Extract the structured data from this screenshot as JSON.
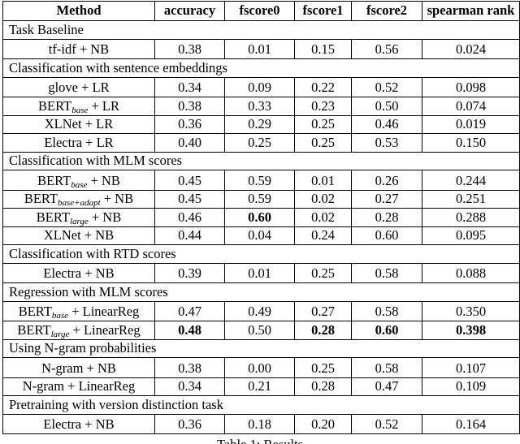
{
  "columns": [
    "Method",
    "accuracy",
    "fscore0",
    "fscore1",
    "fscore2",
    "spearman rank"
  ],
  "sections": [
    {
      "title": "Task Baseline",
      "rows": [
        {
          "method": "tf-idf + NB",
          "values": [
            "0.38",
            "0.01",
            "0.15",
            "0.56",
            "0.024"
          ]
        }
      ]
    },
    {
      "title": "Classification with sentence embeddings",
      "rows": [
        {
          "method": "glove + LR",
          "values": [
            "0.34",
            "0.09",
            "0.22",
            "0.52",
            "0.098"
          ]
        },
        {
          "method": "BERT",
          "sub": "base",
          "suffix": " + LR",
          "values": [
            "0.38",
            "0.33",
            "0.23",
            "0.50",
            "0.074"
          ]
        },
        {
          "method": "XLNet + LR",
          "values": [
            "0.36",
            "0.29",
            "0.25",
            "0.46",
            "0.019"
          ]
        },
        {
          "method": "Electra + LR",
          "values": [
            "0.40",
            "0.25",
            "0.25",
            "0.53",
            "0.150"
          ]
        }
      ]
    },
    {
      "title": "Classification with MLM scores",
      "rows": [
        {
          "method": "BERT",
          "sub": "base",
          "suffix": " + NB",
          "values": [
            "0.45",
            "0.59",
            "0.01",
            "0.26",
            "0.244"
          ]
        },
        {
          "method": "BERT",
          "sub": "base+adapt",
          "suffix": " + NB",
          "values": [
            "0.45",
            "0.59",
            "0.02",
            "0.27",
            "0.251"
          ]
        },
        {
          "method": "BERT",
          "sub": "large",
          "suffix": " + NB",
          "values": [
            "0.46",
            "0.60",
            "0.02",
            "0.28",
            "0.288"
          ],
          "bold": [
            1
          ]
        },
        {
          "method": "XLNet + NB",
          "values": [
            "0.44",
            "0.04",
            "0.24",
            "0.60",
            "0.095"
          ]
        }
      ]
    },
    {
      "title": "Classification with RTD scores",
      "rows": [
        {
          "method": "Electra + NB",
          "values": [
            "0.39",
            "0.01",
            "0.25",
            "0.58",
            "0.088"
          ]
        }
      ]
    },
    {
      "title": "Regression with MLM scores",
      "rows": [
        {
          "method": "BERT",
          "sub": "base",
          "suffix": " + LinearReg",
          "values": [
            "0.47",
            "0.49",
            "0.27",
            "0.58",
            "0.350"
          ]
        },
        {
          "method": "BERT",
          "sub": "large",
          "suffix": " + LinearReg",
          "values": [
            "0.48",
            "0.50",
            "0.28",
            "0.60",
            "0.398"
          ],
          "bold": [
            0,
            2,
            3,
            4
          ]
        }
      ]
    },
    {
      "title": "Using N-gram probabilities",
      "rows": [
        {
          "method": "N-gram + NB",
          "values": [
            "0.38",
            "0.00",
            "0.25",
            "0.58",
            "0.107"
          ]
        },
        {
          "method": "N-gram + LinearReg",
          "values": [
            "0.34",
            "0.21",
            "0.28",
            "0.47",
            "0.109"
          ]
        }
      ]
    },
    {
      "title": "Pretraining with version distinction task",
      "rows": [
        {
          "method": "Electra + NB",
          "values": [
            "0.36",
            "0.18",
            "0.20",
            "0.52",
            "0.164"
          ]
        }
      ]
    }
  ],
  "caption": "Table 1: Results"
}
